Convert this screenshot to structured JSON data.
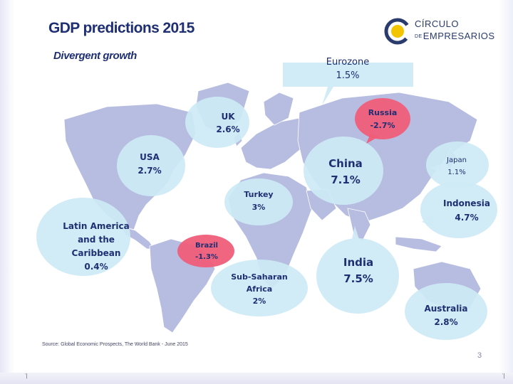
{
  "title": "GDP predictions 2015",
  "subtitle": "Divergent growth",
  "logo": {
    "line1": "CÍRCULO",
    "prefix": "DE",
    "line2": "EMPRESARIOS"
  },
  "regions": {
    "eurozone": {
      "name": "Eurozone",
      "value": "1.5%"
    },
    "uk": {
      "name": "UK",
      "value": "2.6%"
    },
    "russia": {
      "name": "Russia",
      "value": "-2.7%"
    },
    "usa": {
      "name": "USA",
      "value": "2.7%"
    },
    "china": {
      "name": "China",
      "value": "7.1%"
    },
    "japan": {
      "name": "Japan",
      "value": "1.1%"
    },
    "turkey": {
      "name": "Turkey",
      "value": "3%"
    },
    "indonesia": {
      "name": "Indonesia",
      "value": "4.7%"
    },
    "latam": {
      "name_line1": "Latin America",
      "name_line2": "and the",
      "name_line3": "Caribbean",
      "value": "0.4%"
    },
    "brazil": {
      "name": "Brazil",
      "value": "-1.3%"
    },
    "india": {
      "name": "India",
      "value": "7.5%"
    },
    "ssa": {
      "name_line1": "Sub-Saharan",
      "name_line2": "Africa",
      "value": "2%"
    },
    "australia": {
      "name": "Australia",
      "value": "2.8%"
    }
  },
  "colors": {
    "positive": "#cdeaf5",
    "negative": "#ef5d78",
    "land": "#b7bde0",
    "text": "#1f2f73"
  },
  "source": "Source: Global Economic Prospects, The World Bank - June 2015",
  "page_number": "3"
}
